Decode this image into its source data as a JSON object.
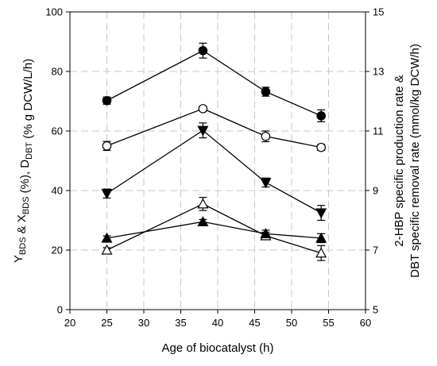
{
  "chart_data": {
    "type": "line",
    "xlabel": "Age of biocatalyst (h)",
    "ylabel_left": {
      "parts": [
        {
          "t": "Y",
          "sub": false
        },
        {
          "t": "BDS",
          "sub": true
        },
        {
          "t": " & X",
          "sub": false
        },
        {
          "t": "BDS",
          "sub": true
        },
        {
          "t": " (%), D",
          "sub": false
        },
        {
          "t": "DBT",
          "sub": true
        },
        {
          "t": " (% g DCW/L/h)",
          "sub": false
        }
      ]
    },
    "ylabel_right": {
      "line1": "2-HBP specific production rate &",
      "line2": "DBT specific removal rate (mmol/kg DCW/h)"
    },
    "xlim": [
      20,
      60
    ],
    "ylim_left": [
      0,
      100
    ],
    "ylim_right": [
      5,
      15
    ],
    "x_ticks": [
      "20",
      "25",
      "30",
      "35",
      "40",
      "45",
      "50",
      "55",
      "60"
    ],
    "y_ticks_left": [
      "0",
      "20",
      "40",
      "60",
      "80",
      "100"
    ],
    "y_ticks_right": [
      "5",
      "7",
      "9",
      "11",
      "13",
      "15"
    ],
    "grid": true,
    "x": [
      25,
      38,
      46.5,
      54
    ],
    "series": [
      {
        "marker": "circle-filled",
        "values": [
          70.2,
          87,
          73.2,
          65.1
        ],
        "errors": [
          1.2,
          2.5,
          1.5,
          2.0
        ]
      },
      {
        "marker": "circle-open",
        "values": [
          55,
          67.5,
          58.2,
          54.5
        ],
        "errors": [
          1.5,
          0.8,
          1.8,
          1.0
        ]
      },
      {
        "marker": "triangle-down-filled",
        "values": [
          39,
          60.2,
          42.7,
          32.5
        ],
        "errors": [
          1.5,
          2.5,
          1.5,
          2.5
        ]
      },
      {
        "marker": "triangle-up-open",
        "values": [
          20,
          35.5,
          24.8,
          19
        ],
        "errors": [
          0.8,
          2.2,
          1.2,
          2.5
        ]
      },
      {
        "marker": "triangle-up-filled",
        "values": [
          24,
          29.5,
          25.5,
          24
        ],
        "errors": [
          0.8,
          0.8,
          1.2,
          1.5
        ]
      }
    ]
  }
}
